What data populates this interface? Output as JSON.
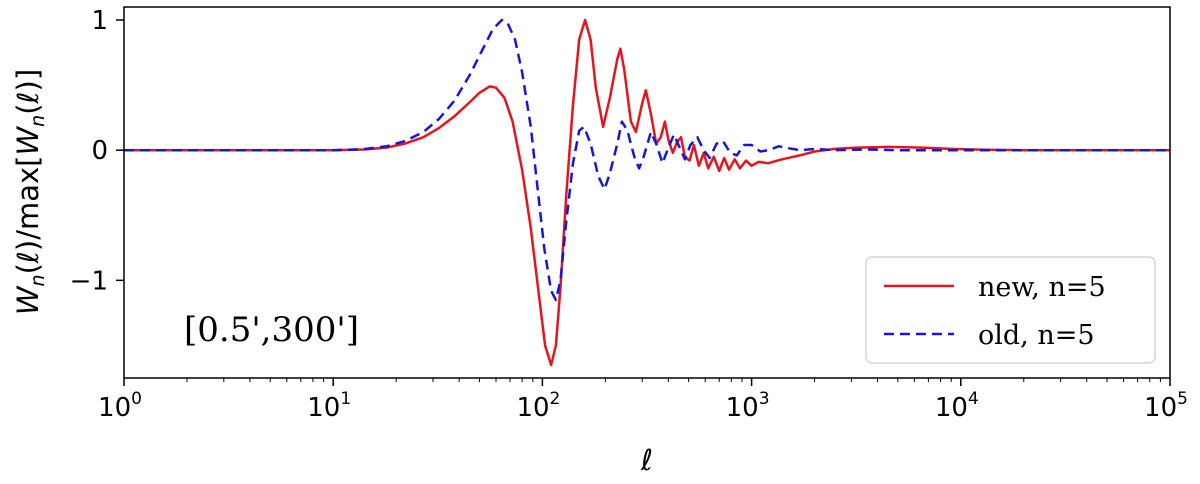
{
  "chart_data": {
    "type": "line",
    "title": "",
    "xlabel": "ℓ",
    "ylabel": "W_n(ℓ)/max[W_n(ℓ)]",
    "ylabel_parts": {
      "w1": "W",
      "n1": "n",
      "l1": "(ℓ)",
      "mid": "/max[",
      "w2": "W",
      "n2": "n",
      "l2": "(ℓ)]"
    },
    "xscale": "log",
    "xlim": [
      1,
      100000
    ],
    "ylim": [
      -1.75,
      1.1
    ],
    "xticks": [
      {
        "value": 1,
        "base": "10",
        "exp": "0"
      },
      {
        "value": 10,
        "base": "10",
        "exp": "1"
      },
      {
        "value": 100,
        "base": "10",
        "exp": "2"
      },
      {
        "value": 1000,
        "base": "10",
        "exp": "3"
      },
      {
        "value": 10000,
        "base": "10",
        "exp": "4"
      },
      {
        "value": 100000,
        "base": "10",
        "exp": "5"
      }
    ],
    "yticks": [
      {
        "value": 1,
        "label": "1"
      },
      {
        "value": 0,
        "label": "0"
      },
      {
        "value": -1,
        "label": "−1"
      }
    ],
    "grid": false,
    "legend_position": "lower-right",
    "annotation": "[0.5',300']",
    "series": [
      {
        "name": "new, n=5",
        "color": "#e8141c",
        "style": "solid",
        "points": [
          [
            1,
            0
          ],
          [
            10,
            0
          ],
          [
            14,
            0.005
          ],
          [
            18,
            0.02
          ],
          [
            22,
            0.05
          ],
          [
            27,
            0.1
          ],
          [
            32,
            0.17
          ],
          [
            38,
            0.26
          ],
          [
            45,
            0.37
          ],
          [
            50,
            0.44
          ],
          [
            56,
            0.49
          ],
          [
            60,
            0.48
          ],
          [
            66,
            0.4
          ],
          [
            72,
            0.22
          ],
          [
            80,
            -0.15
          ],
          [
            88,
            -0.6
          ],
          [
            96,
            -1.1
          ],
          [
            103,
            -1.5
          ],
          [
            110,
            -1.65
          ],
          [
            116,
            -1.5
          ],
          [
            122,
            -1.05
          ],
          [
            130,
            -0.35
          ],
          [
            140,
            0.35
          ],
          [
            150,
            0.85
          ],
          [
            160,
            1.0
          ],
          [
            170,
            0.85
          ],
          [
            180,
            0.48
          ],
          [
            195,
            0.18
          ],
          [
            210,
            0.4
          ],
          [
            228,
            0.7
          ],
          [
            236,
            0.78
          ],
          [
            246,
            0.62
          ],
          [
            265,
            0.22
          ],
          [
            280,
            0.14
          ],
          [
            300,
            0.36
          ],
          [
            312,
            0.46
          ],
          [
            330,
            0.28
          ],
          [
            350,
            0.05
          ],
          [
            368,
            0.1
          ],
          [
            385,
            0.22
          ],
          [
            400,
            0.08
          ],
          [
            420,
            -0.02
          ],
          [
            440,
            0.06
          ],
          [
            460,
            0.1
          ],
          [
            480,
            -0.05
          ],
          [
            505,
            -0.08
          ],
          [
            530,
            0.04
          ],
          [
            560,
            -0.12
          ],
          [
            590,
            -0.02
          ],
          [
            620,
            -0.14
          ],
          [
            660,
            -0.05
          ],
          [
            700,
            -0.16
          ],
          [
            740,
            -0.06
          ],
          [
            780,
            -0.15
          ],
          [
            830,
            -0.07
          ],
          [
            880,
            -0.14
          ],
          [
            940,
            -0.08
          ],
          [
            1000,
            -0.12
          ],
          [
            1080,
            -0.09
          ],
          [
            1200,
            -0.1
          ],
          [
            1400,
            -0.07
          ],
          [
            1700,
            -0.04
          ],
          [
            2000,
            -0.01
          ],
          [
            2500,
            0.01
          ],
          [
            3200,
            0.02
          ],
          [
            4500,
            0.025
          ],
          [
            6500,
            0.02
          ],
          [
            9000,
            0.01
          ],
          [
            13000,
            0.003
          ],
          [
            20000,
            0
          ],
          [
            100000,
            0
          ]
        ]
      },
      {
        "name": "old, n=5",
        "color": "#1515e0",
        "style": "dashed",
        "points": [
          [
            1,
            0
          ],
          [
            10,
            0
          ],
          [
            14,
            0.008
          ],
          [
            18,
            0.03
          ],
          [
            22,
            0.07
          ],
          [
            27,
            0.14
          ],
          [
            32,
            0.24
          ],
          [
            38,
            0.38
          ],
          [
            45,
            0.58
          ],
          [
            52,
            0.78
          ],
          [
            58,
            0.93
          ],
          [
            64,
            1.0
          ],
          [
            68,
            0.98
          ],
          [
            74,
            0.85
          ],
          [
            80,
            0.6
          ],
          [
            88,
            0.18
          ],
          [
            95,
            -0.3
          ],
          [
            102,
            -0.75
          ],
          [
            110,
            -1.08
          ],
          [
            116,
            -1.15
          ],
          [
            122,
            -1.0
          ],
          [
            130,
            -0.55
          ],
          [
            140,
            -0.1
          ],
          [
            150,
            0.15
          ],
          [
            158,
            0.18
          ],
          [
            170,
            0.05
          ],
          [
            185,
            -0.2
          ],
          [
            198,
            -0.3
          ],
          [
            210,
            -0.18
          ],
          [
            228,
            0.05
          ],
          [
            240,
            0.22
          ],
          [
            255,
            0.15
          ],
          [
            275,
            -0.05
          ],
          [
            290,
            -0.14
          ],
          [
            305,
            -0.05
          ],
          [
            330,
            0.14
          ],
          [
            350,
            0.05
          ],
          [
            375,
            -0.1
          ],
          [
            400,
            0.02
          ],
          [
            425,
            0.12
          ],
          [
            450,
            0.03
          ],
          [
            480,
            -0.07
          ],
          [
            510,
            0.04
          ],
          [
            550,
            0.1
          ],
          [
            590,
            0.0
          ],
          [
            630,
            -0.06
          ],
          [
            680,
            0.05
          ],
          [
            730,
            0.07
          ],
          [
            790,
            -0.02
          ],
          [
            850,
            -0.04
          ],
          [
            920,
            0.04
          ],
          [
            1000,
            0.04
          ],
          [
            1100,
            -0.01
          ],
          [
            1200,
            0.0
          ],
          [
            1350,
            0.03
          ],
          [
            1500,
            0.015
          ],
          [
            1700,
            0.0
          ],
          [
            2000,
            0.01
          ],
          [
            2500,
            0.0
          ],
          [
            3500,
            0.005
          ],
          [
            5000,
            0
          ],
          [
            100000,
            0
          ]
        ]
      }
    ]
  }
}
